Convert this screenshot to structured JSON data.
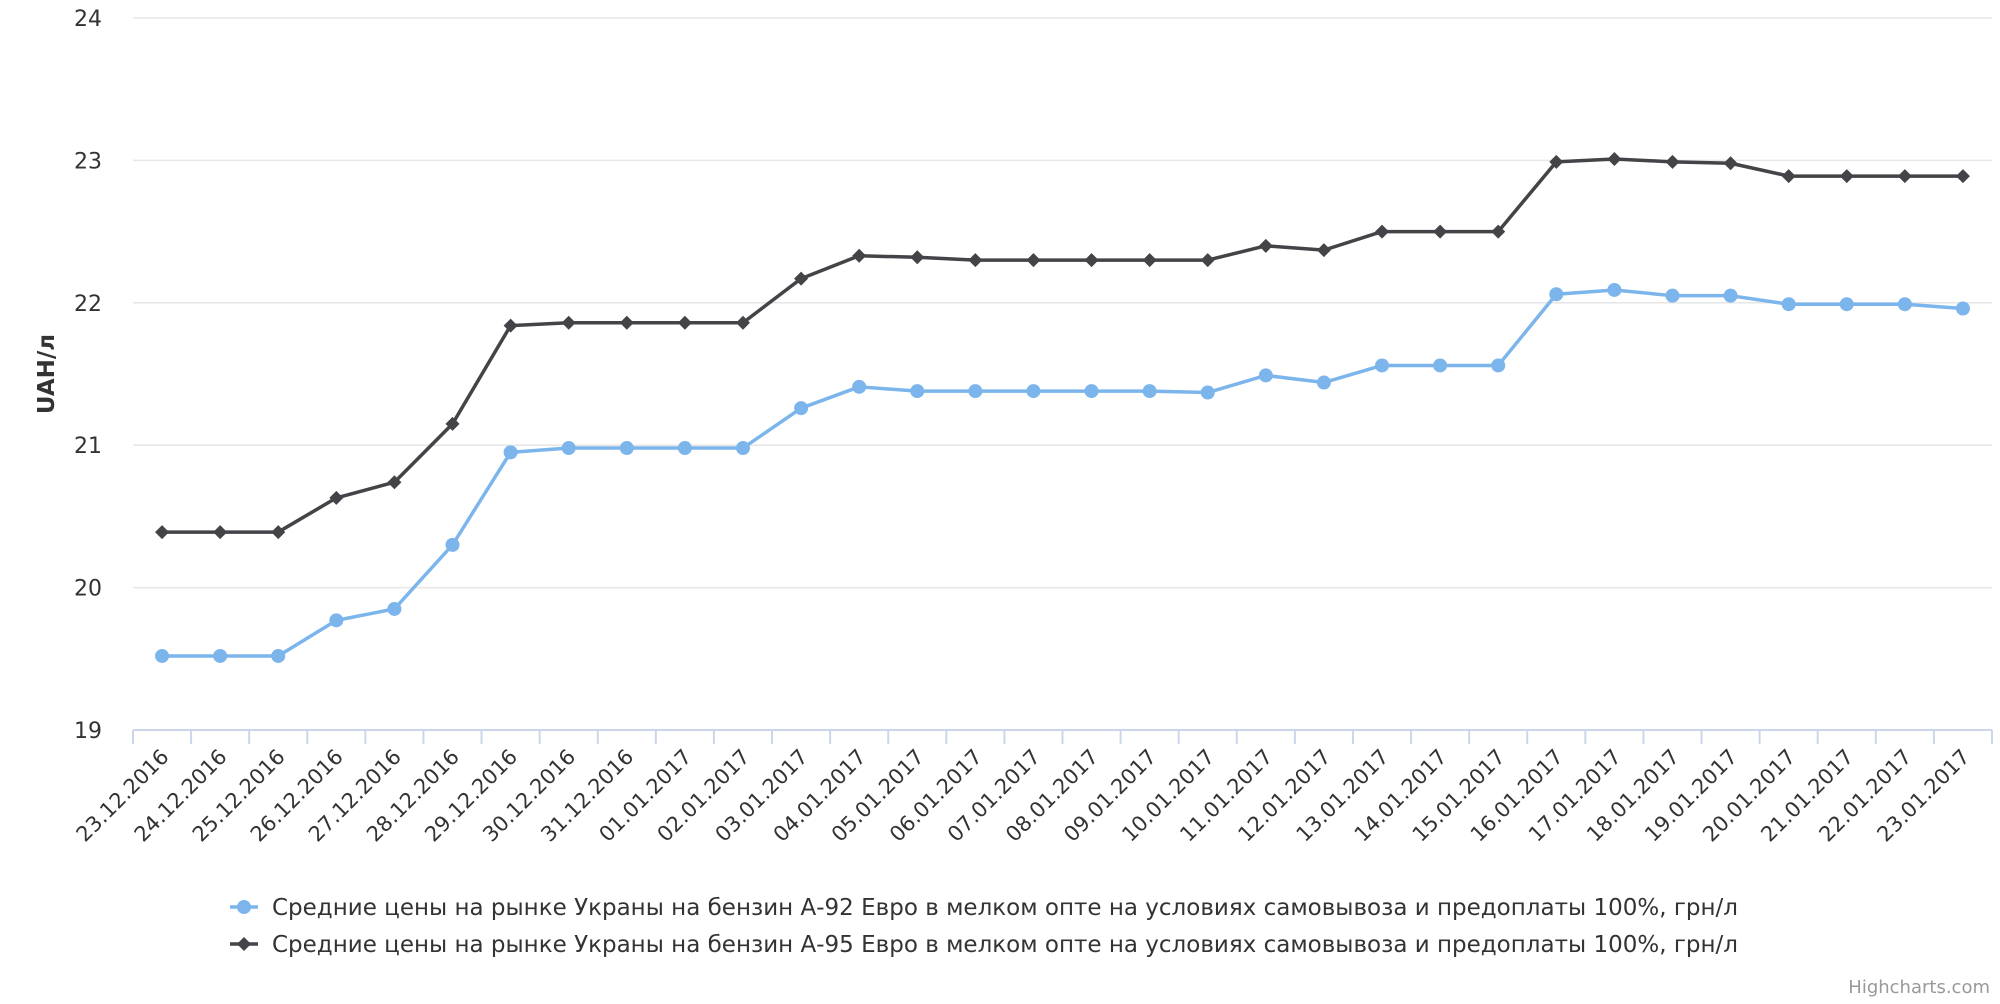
{
  "chart_data": {
    "type": "line",
    "title": "",
    "xlabel": "",
    "ylabel": "UAH/л",
    "ylim": [
      19,
      24
    ],
    "yticks": [
      19,
      20,
      21,
      22,
      23,
      24
    ],
    "grid": true,
    "legend_position": "bottom-center",
    "categories": [
      "23.12.2016",
      "24.12.2016",
      "25.12.2016",
      "26.12.2016",
      "27.12.2016",
      "28.12.2016",
      "29.12.2016",
      "30.12.2016",
      "31.12.2016",
      "01.01.2017",
      "02.01.2017",
      "03.01.2017",
      "04.01.2017",
      "05.01.2017",
      "06.01.2017",
      "07.01.2017",
      "08.01.2017",
      "09.01.2017",
      "10.01.2017",
      "11.01.2017",
      "12.01.2017",
      "13.01.2017",
      "14.01.2017",
      "15.01.2017",
      "16.01.2017",
      "17.01.2017",
      "18.01.2017",
      "19.01.2017",
      "20.01.2017",
      "21.01.2017",
      "22.01.2017",
      "23.01.2017"
    ],
    "series": [
      {
        "name": "Средние цены на рынке Украны на бензин А-92 Евро в мелком опте на условиях самовывоза и предоплаты 100%, грн/л",
        "color": "#7cb5ec",
        "marker": "circle",
        "values": [
          19.52,
          19.52,
          19.52,
          19.77,
          19.85,
          20.3,
          20.95,
          20.98,
          20.98,
          20.98,
          20.98,
          21.26,
          21.41,
          21.38,
          21.38,
          21.38,
          21.38,
          21.38,
          21.37,
          21.49,
          21.44,
          21.56,
          21.56,
          21.56,
          22.06,
          22.09,
          22.05,
          22.05,
          21.99,
          21.99,
          21.99,
          21.96
        ]
      },
      {
        "name": "Средние цены на рынке Украны на бензин А-95 Евро в мелком опте на условиях самовывоза и предоплаты 100%, грн/л",
        "color": "#434348",
        "marker": "diamond",
        "values": [
          20.39,
          20.39,
          20.39,
          20.63,
          20.74,
          21.15,
          21.84,
          21.86,
          21.86,
          21.86,
          21.86,
          22.17,
          22.33,
          22.32,
          22.3,
          22.3,
          22.3,
          22.3,
          22.3,
          22.4,
          22.37,
          22.5,
          22.5,
          22.5,
          22.99,
          23.01,
          22.99,
          22.98,
          22.89,
          22.89,
          22.89,
          22.89
        ]
      }
    ]
  },
  "credits": "Highcharts.com"
}
